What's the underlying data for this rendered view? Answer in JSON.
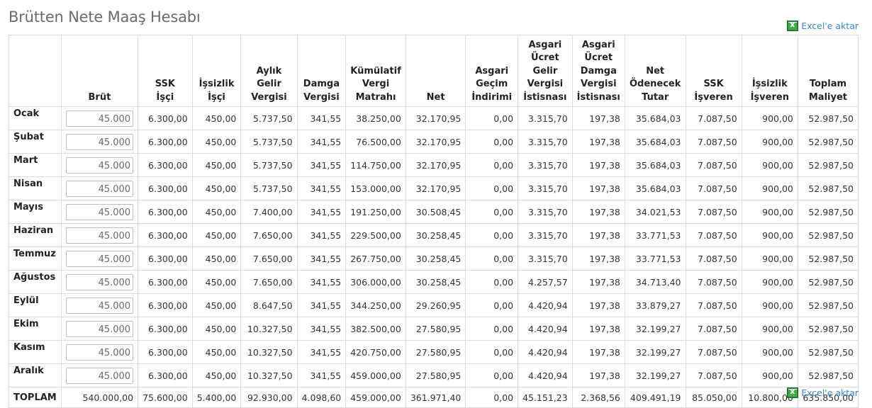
{
  "page": {
    "title": "Brütten Nete Maaş Hesabı"
  },
  "excel_link_label": "Excel'e aktar",
  "columns": [
    {
      "label": ""
    },
    {
      "label": "Brüt"
    },
    {
      "label": "SSK\nİşçi"
    },
    {
      "label": "İşsizlik\nİşçi"
    },
    {
      "label": "Aylık\nGelir\nVergisi"
    },
    {
      "label": "Damga\nVergisi"
    },
    {
      "label": "Kümülatif\nVergi\nMatrahı"
    },
    {
      "label": "Net"
    },
    {
      "label": "Asgari\nGeçim\nİndirimi"
    },
    {
      "label": "Asgari\nÜcret\nGelir\nVergisi\nİstisnası"
    },
    {
      "label": "Asgari\nÜcret\nDamga\nVergisi\nİstisnası"
    },
    {
      "label": "Net\nÖdenecek\nTutar"
    },
    {
      "label": "SSK\nİşveren"
    },
    {
      "label": "İşsizlik\nİşveren"
    },
    {
      "label": "Toplam\nMaliyet"
    }
  ],
  "rows": [
    {
      "month": "Ocak",
      "brut": "45.000",
      "values": [
        "6.300,00",
        "450,00",
        "5.737,50",
        "341,55",
        "38.250,00",
        "32.170,95",
        "0,00",
        "3.315,70",
        "197,38",
        "35.684,03",
        "7.087,50",
        "900,00",
        "52.987,50"
      ]
    },
    {
      "month": "Şubat",
      "brut": "45.000",
      "values": [
        "6.300,00",
        "450,00",
        "5.737,50",
        "341,55",
        "76.500,00",
        "32.170,95",
        "0,00",
        "3.315,70",
        "197,38",
        "35.684,03",
        "7.087,50",
        "900,00",
        "52.987,50"
      ]
    },
    {
      "month": "Mart",
      "brut": "45.000",
      "values": [
        "6.300,00",
        "450,00",
        "5.737,50",
        "341,55",
        "114.750,00",
        "32.170,95",
        "0,00",
        "3.315,70",
        "197,38",
        "35.684,03",
        "7.087,50",
        "900,00",
        "52.987,50"
      ]
    },
    {
      "month": "Nisan",
      "brut": "45.000",
      "values": [
        "6.300,00",
        "450,00",
        "5.737,50",
        "341,55",
        "153.000,00",
        "32.170,95",
        "0,00",
        "3.315,70",
        "197,38",
        "35.684,03",
        "7.087,50",
        "900,00",
        "52.987,50"
      ]
    },
    {
      "month": "Mayıs",
      "brut": "45.000",
      "values": [
        "6.300,00",
        "450,00",
        "7.400,00",
        "341,55",
        "191.250,00",
        "30.508,45",
        "0,00",
        "3.315,70",
        "197,38",
        "34.021,53",
        "7.087,50",
        "900,00",
        "52.987,50"
      ]
    },
    {
      "month": "Haziran",
      "brut": "45.000",
      "values": [
        "6.300,00",
        "450,00",
        "7.650,00",
        "341,55",
        "229.500,00",
        "30.258,45",
        "0,00",
        "3.315,70",
        "197,38",
        "33.771,53",
        "7.087,50",
        "900,00",
        "52.987,50"
      ]
    },
    {
      "month": "Temmuz",
      "brut": "45.000",
      "values": [
        "6.300,00",
        "450,00",
        "7.650,00",
        "341,55",
        "267.750,00",
        "30.258,45",
        "0,00",
        "3.315,70",
        "197,38",
        "33.771,53",
        "7.087,50",
        "900,00",
        "52.987,50"
      ]
    },
    {
      "month": "Ağustos",
      "brut": "45.000",
      "values": [
        "6.300,00",
        "450,00",
        "7.650,00",
        "341,55",
        "306.000,00",
        "30.258,45",
        "0,00",
        "4.257,57",
        "197,38",
        "34.713,40",
        "7.087,50",
        "900,00",
        "52.987,50"
      ]
    },
    {
      "month": "Eylül",
      "brut": "45.000",
      "values": [
        "6.300,00",
        "450,00",
        "8.647,50",
        "341,55",
        "344.250,00",
        "29.260,95",
        "0,00",
        "4.420,94",
        "197,38",
        "33.879,27",
        "7.087,50",
        "900,00",
        "52.987,50"
      ]
    },
    {
      "month": "Ekim",
      "brut": "45.000",
      "values": [
        "6.300,00",
        "450,00",
        "10.327,50",
        "341,55",
        "382.500,00",
        "27.580,95",
        "0,00",
        "4.420,94",
        "197,38",
        "32.199,27",
        "7.087,50",
        "900,00",
        "52.987,50"
      ]
    },
    {
      "month": "Kasım",
      "brut": "45.000",
      "values": [
        "6.300,00",
        "450,00",
        "10.327,50",
        "341,55",
        "420.750,00",
        "27.580,95",
        "0,00",
        "4.420,94",
        "197,38",
        "32.199,27",
        "7.087,50",
        "900,00",
        "52.987,50"
      ]
    },
    {
      "month": "Aralık",
      "brut": "45.000",
      "values": [
        "6.300,00",
        "450,00",
        "10.327,50",
        "341,55",
        "459.000,00",
        "27.580,95",
        "0,00",
        "4.420,94",
        "197,38",
        "32.199,27",
        "7.087,50",
        "900,00",
        "52.987,50"
      ]
    }
  ],
  "total": {
    "label": "TOPLAM",
    "values": [
      "540.000,00",
      "75.600,00",
      "5.400,00",
      "92.930,00",
      "4.098,60",
      "459.000,00",
      "361.971,40",
      "0,00",
      "45.151,23",
      "2.368,56",
      "409.491,19",
      "85.050,00",
      "10.800,00",
      "635.850,00"
    ]
  }
}
